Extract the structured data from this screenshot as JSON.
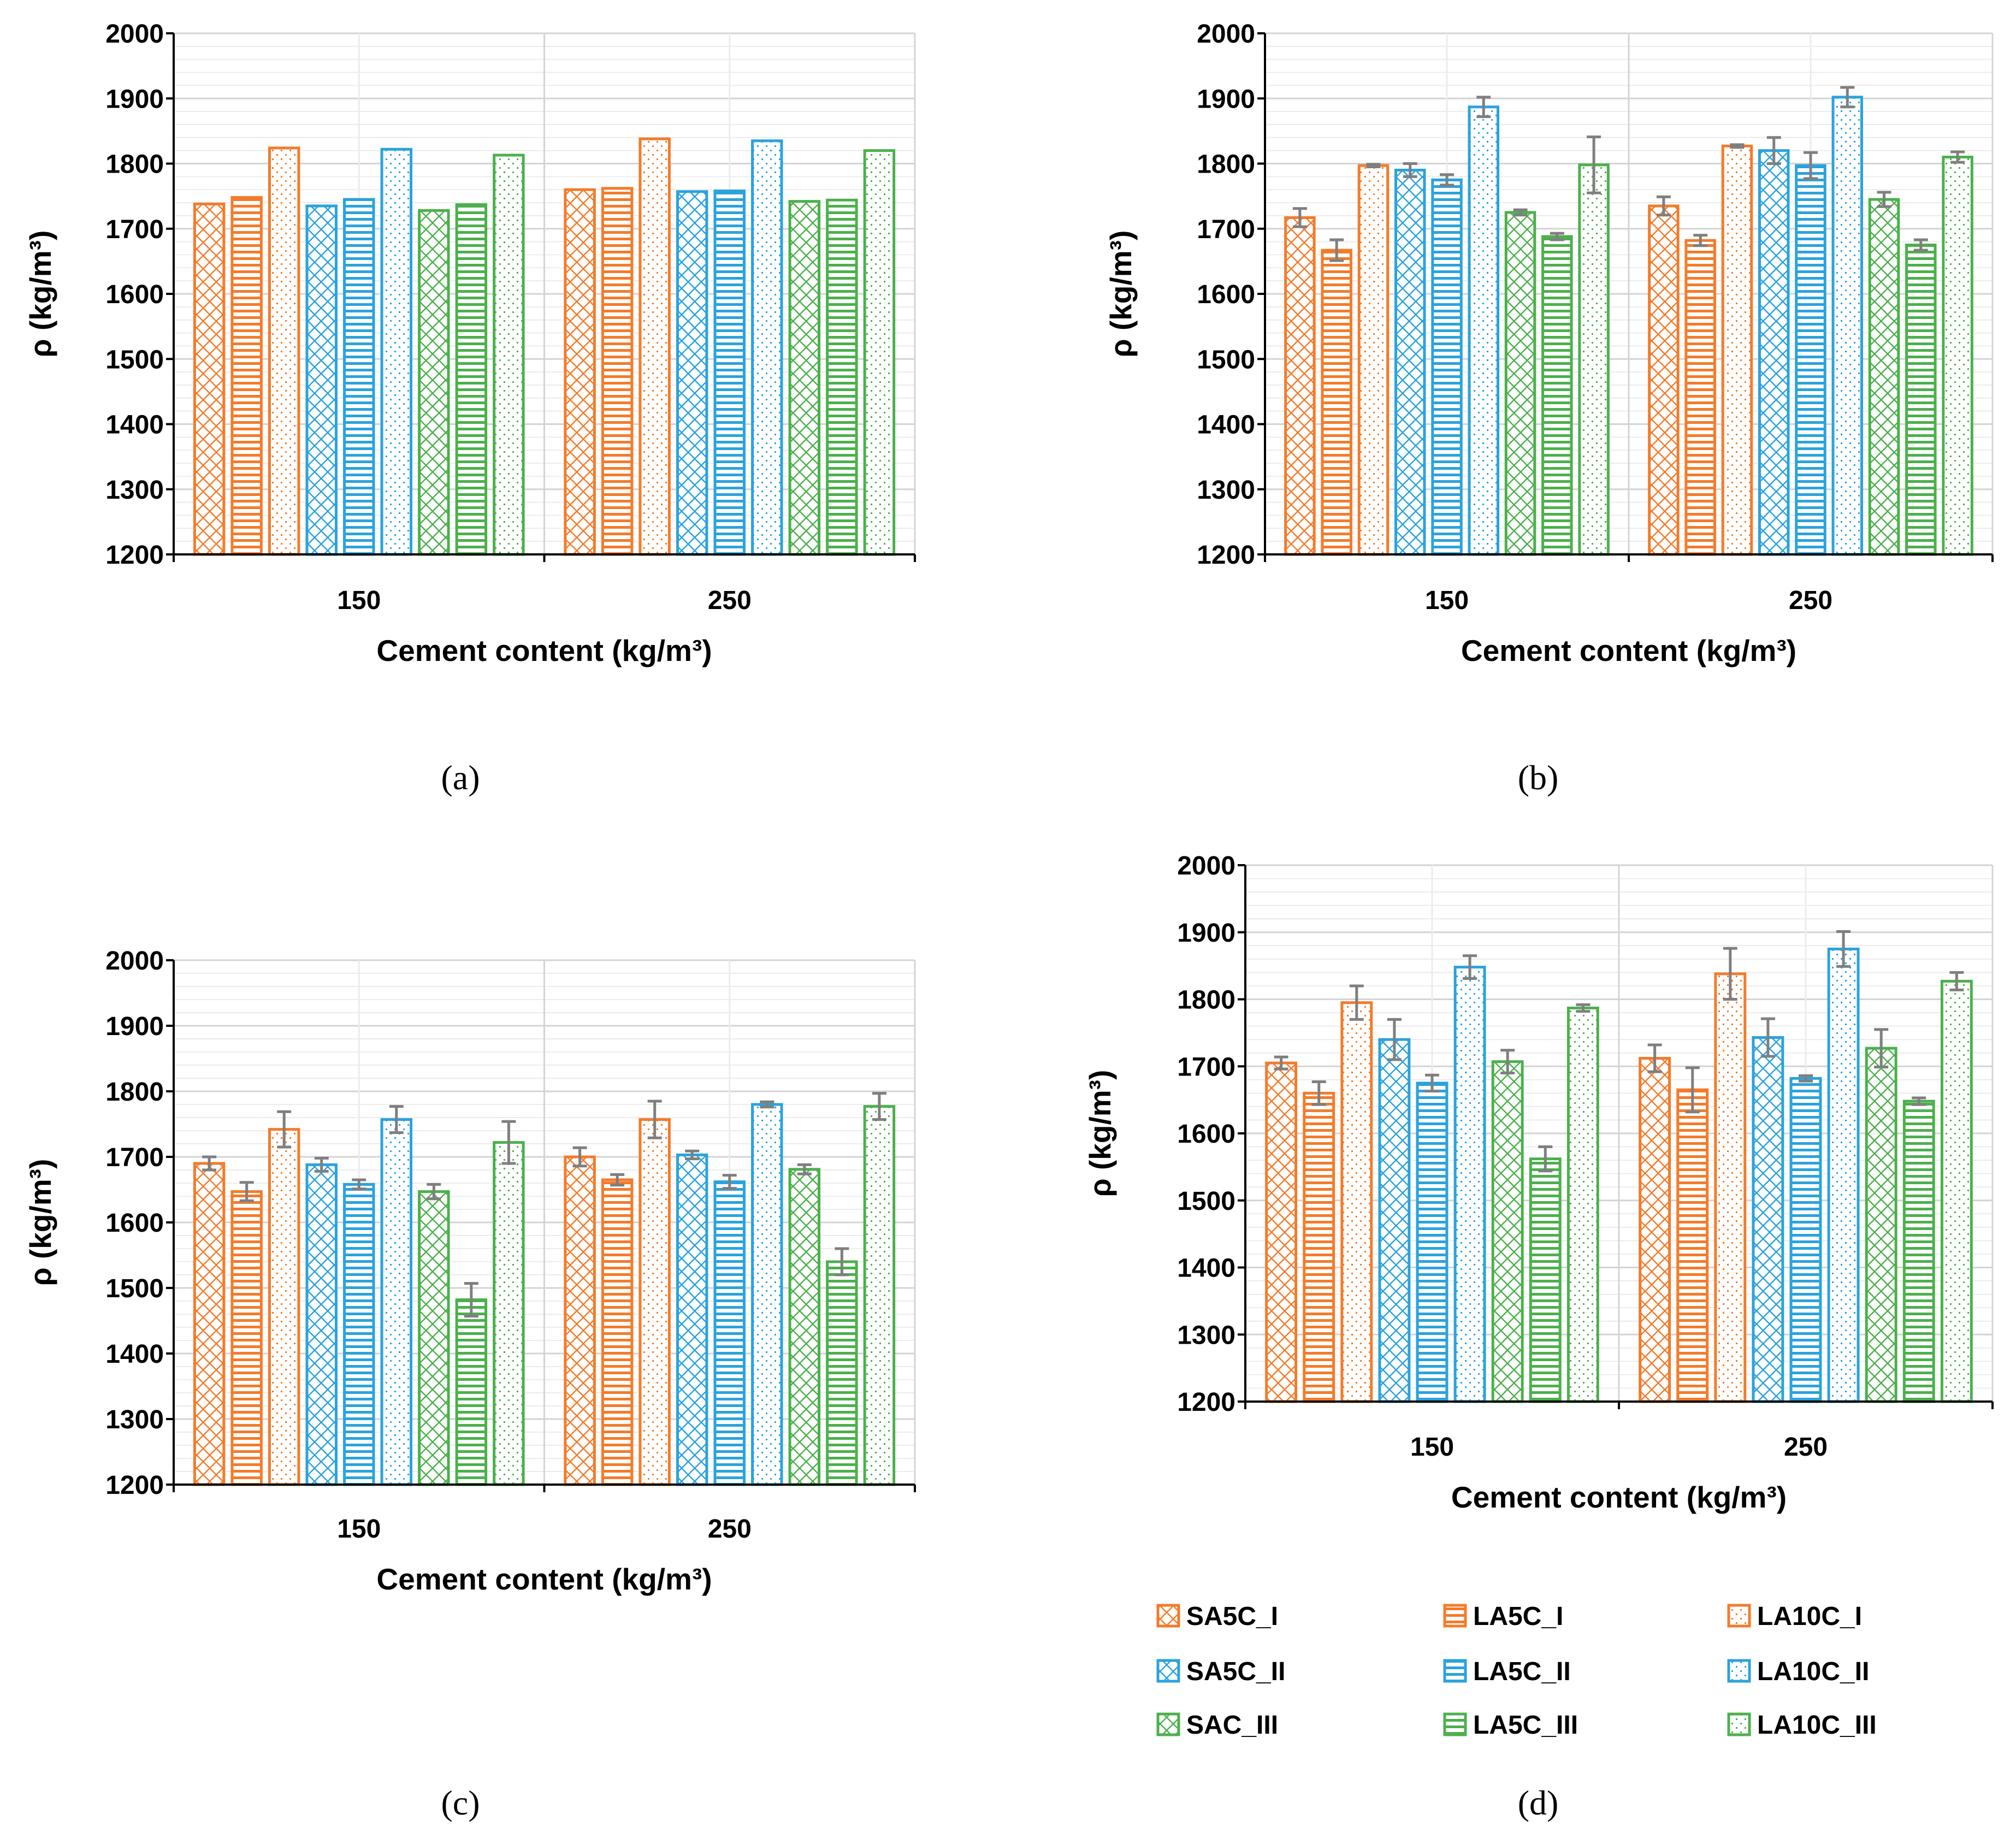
{
  "colors": {
    "orange": "#F47B2A",
    "blue": "#2AA3DC",
    "green": "#4CB04C",
    "errorbar": "#7F7F7F",
    "grid": "#DADADA"
  },
  "legend": {
    "items": [
      {
        "label": "SA5C_I",
        "color": "#F47B2A",
        "pattern": "cross"
      },
      {
        "label": "LA5C_I",
        "color": "#F47B2A",
        "pattern": "hline"
      },
      {
        "label": "LA10C_I",
        "color": "#F47B2A",
        "pattern": "dots"
      },
      {
        "label": "SA5C_II",
        "color": "#2AA3DC",
        "pattern": "cross"
      },
      {
        "label": "LA5C_II",
        "color": "#2AA3DC",
        "pattern": "hline"
      },
      {
        "label": "LA10C_II",
        "color": "#2AA3DC",
        "pattern": "dots"
      },
      {
        "label": "SAC_III",
        "color": "#4CB04C",
        "pattern": "cross"
      },
      {
        "label": "LA5C_III",
        "color": "#4CB04C",
        "pattern": "hline"
      },
      {
        "label": "LA10C_III",
        "color": "#4CB04C",
        "pattern": "dots"
      }
    ]
  },
  "chart_data": [
    {
      "panel": "(a)",
      "type": "bar",
      "ylabel": "ρ (kg/m³)",
      "xlabel": "Cement content (kg/m³)",
      "ylim": [
        1200,
        2000
      ],
      "yticks": [
        1200,
        1300,
        1400,
        1500,
        1600,
        1700,
        1800,
        1900,
        2000
      ],
      "categories": [
        "150",
        "250"
      ],
      "series": [
        {
          "name": "SA5C_I",
          "values": [
            1738,
            1760
          ],
          "errors": null
        },
        {
          "name": "LA5C_I",
          "values": [
            1748,
            1762
          ],
          "errors": null
        },
        {
          "name": "LA10C_I",
          "values": [
            1824,
            1838
          ],
          "errors": null
        },
        {
          "name": "SA5C_II",
          "values": [
            1735,
            1757
          ],
          "errors": null
        },
        {
          "name": "LA5C_II",
          "values": [
            1745,
            1758
          ],
          "errors": null
        },
        {
          "name": "LA10C_II",
          "values": [
            1822,
            1835
          ],
          "errors": null
        },
        {
          "name": "SAC_III",
          "values": [
            1728,
            1742
          ],
          "errors": null
        },
        {
          "name": "LA5C_III",
          "values": [
            1737,
            1744
          ],
          "errors": null
        },
        {
          "name": "LA10C_III",
          "values": [
            1813,
            1820
          ],
          "errors": null
        }
      ]
    },
    {
      "panel": "(b)",
      "type": "bar",
      "ylabel": "ρ (kg/m³)",
      "xlabel": "Cement content (kg/m³)",
      "ylim": [
        1200,
        2000
      ],
      "yticks": [
        1200,
        1300,
        1400,
        1500,
        1600,
        1700,
        1800,
        1900,
        2000
      ],
      "categories": [
        "150",
        "250"
      ],
      "series": [
        {
          "name": "SA5C_I",
          "values": [
            1717,
            1735
          ],
          "errors": [
            14,
            14
          ]
        },
        {
          "name": "LA5C_I",
          "values": [
            1667,
            1682
          ],
          "errors": [
            16,
            8
          ]
        },
        {
          "name": "LA10C_I",
          "values": [
            1797,
            1827
          ],
          "errors": [
            2,
            2
          ]
        },
        {
          "name": "SA5C_II",
          "values": [
            1790,
            1820
          ],
          "errors": [
            10,
            20
          ]
        },
        {
          "name": "LA5C_II",
          "values": [
            1775,
            1797
          ],
          "errors": [
            8,
            20
          ]
        },
        {
          "name": "LA10C_II",
          "values": [
            1887,
            1902
          ],
          "errors": [
            15,
            15
          ]
        },
        {
          "name": "SAC_III",
          "values": [
            1725,
            1745
          ],
          "errors": [
            4,
            11
          ]
        },
        {
          "name": "LA5C_III",
          "values": [
            1688,
            1675
          ],
          "errors": [
            5,
            8
          ]
        },
        {
          "name": "LA10C_III",
          "values": [
            1798,
            1810
          ],
          "errors": [
            43,
            8
          ]
        }
      ]
    },
    {
      "panel": "(c)",
      "type": "bar",
      "ylabel": "ρ (kg/m³)",
      "xlabel": "Cement content (kg/m³)",
      "ylim": [
        1200,
        2000
      ],
      "yticks": [
        1200,
        1300,
        1400,
        1500,
        1600,
        1700,
        1800,
        1900,
        2000
      ],
      "categories": [
        "150",
        "250"
      ],
      "series": [
        {
          "name": "SA5C_I",
          "values": [
            1690,
            1700
          ],
          "errors": [
            10,
            14
          ]
        },
        {
          "name": "LA5C_I",
          "values": [
            1647,
            1665
          ],
          "errors": [
            14,
            8
          ]
        },
        {
          "name": "LA10C_I",
          "values": [
            1742,
            1757
          ],
          "errors": [
            27,
            28
          ]
        },
        {
          "name": "SA5C_II",
          "values": [
            1688,
            1703
          ],
          "errors": [
            10,
            6
          ]
        },
        {
          "name": "LA5C_II",
          "values": [
            1658,
            1662
          ],
          "errors": [
            7,
            10
          ]
        },
        {
          "name": "LA10C_II",
          "values": [
            1757,
            1780
          ],
          "errors": [
            20,
            4
          ]
        },
        {
          "name": "SAC_III",
          "values": [
            1647,
            1681
          ],
          "errors": [
            11,
            7
          ]
        },
        {
          "name": "LA5C_III",
          "values": [
            1482,
            1540
          ],
          "errors": [
            25,
            20
          ]
        },
        {
          "name": "LA10C_III",
          "values": [
            1722,
            1777
          ],
          "errors": [
            32,
            20
          ]
        }
      ]
    },
    {
      "panel": "(d)",
      "type": "bar",
      "ylabel": "ρ (kg/m³)",
      "xlabel": "Cement content (kg/m³)",
      "ylim": [
        1200,
        2000
      ],
      "yticks": [
        1200,
        1300,
        1400,
        1500,
        1600,
        1700,
        1800,
        1900,
        2000
      ],
      "categories": [
        "150",
        "250"
      ],
      "series": [
        {
          "name": "SA5C_I",
          "values": [
            1705,
            1712
          ],
          "errors": [
            9,
            20
          ]
        },
        {
          "name": "LA5C_I",
          "values": [
            1660,
            1665
          ],
          "errors": [
            17,
            33
          ]
        },
        {
          "name": "LA10C_I",
          "values": [
            1795,
            1838
          ],
          "errors": [
            25,
            38
          ]
        },
        {
          "name": "SA5C_II",
          "values": [
            1740,
            1743
          ],
          "errors": [
            30,
            28
          ]
        },
        {
          "name": "LA5C_II",
          "values": [
            1675,
            1682
          ],
          "errors": [
            12,
            4
          ]
        },
        {
          "name": "LA10C_II",
          "values": [
            1848,
            1875
          ],
          "errors": [
            17,
            26
          ]
        },
        {
          "name": "SAC_III",
          "values": [
            1707,
            1727
          ],
          "errors": [
            17,
            28
          ]
        },
        {
          "name": "LA5C_III",
          "values": [
            1562,
            1648
          ],
          "errors": [
            18,
            5
          ]
        },
        {
          "name": "LA10C_III",
          "values": [
            1787,
            1827
          ],
          "errors": [
            5,
            13
          ]
        }
      ]
    }
  ]
}
